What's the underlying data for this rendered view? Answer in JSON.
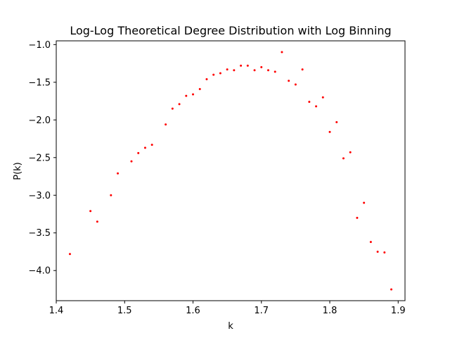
{
  "chart_data": {
    "type": "scatter",
    "title": "Log-Log Theoretical Degree Distribution with Log Binning",
    "xlabel": "k",
    "ylabel": "P(k)",
    "xlim": [
      1.4,
      1.91
    ],
    "ylim": [
      -4.4,
      -0.95
    ],
    "xticks": [
      1.4,
      1.5,
      1.6,
      1.7,
      1.8,
      1.9
    ],
    "xtick_labels": [
      "1.4",
      "1.5",
      "1.6",
      "1.7",
      "1.8",
      "1.9"
    ],
    "yticks": [
      -1.0,
      -1.5,
      -2.0,
      -2.5,
      -3.0,
      -3.5,
      -4.0
    ],
    "ytick_labels": [
      "−1.0",
      "−1.5",
      "−2.0",
      "−2.5",
      "−3.0",
      "−3.5",
      "−4.0"
    ],
    "grid": false,
    "marker_color": "#ff0000",
    "series": [
      {
        "name": "P(k)",
        "x": [
          1.42,
          1.45,
          1.46,
          1.48,
          1.49,
          1.51,
          1.52,
          1.53,
          1.54,
          1.56,
          1.57,
          1.58,
          1.59,
          1.6,
          1.61,
          1.62,
          1.63,
          1.64,
          1.65,
          1.66,
          1.67,
          1.68,
          1.69,
          1.7,
          1.71,
          1.72,
          1.73,
          1.74,
          1.75,
          1.76,
          1.77,
          1.78,
          1.79,
          1.8,
          1.81,
          1.82,
          1.83,
          1.84,
          1.85,
          1.86,
          1.87,
          1.88,
          1.89
        ],
        "y": [
          -3.78,
          -3.21,
          -3.35,
          -3.0,
          -2.71,
          -2.55,
          -2.44,
          -2.37,
          -2.33,
          -2.06,
          -1.85,
          -1.79,
          -1.68,
          -1.66,
          -1.59,
          -1.46,
          -1.4,
          -1.38,
          -1.33,
          -1.34,
          -1.28,
          -1.28,
          -1.34,
          -1.3,
          -1.34,
          -1.36,
          -1.1,
          -1.48,
          -1.53,
          -1.33,
          -1.76,
          -1.82,
          -1.7,
          -2.16,
          -2.03,
          -2.51,
          -2.43,
          -3.3,
          -3.1,
          -3.62,
          -3.75,
          -3.76,
          -4.25
        ]
      }
    ]
  }
}
